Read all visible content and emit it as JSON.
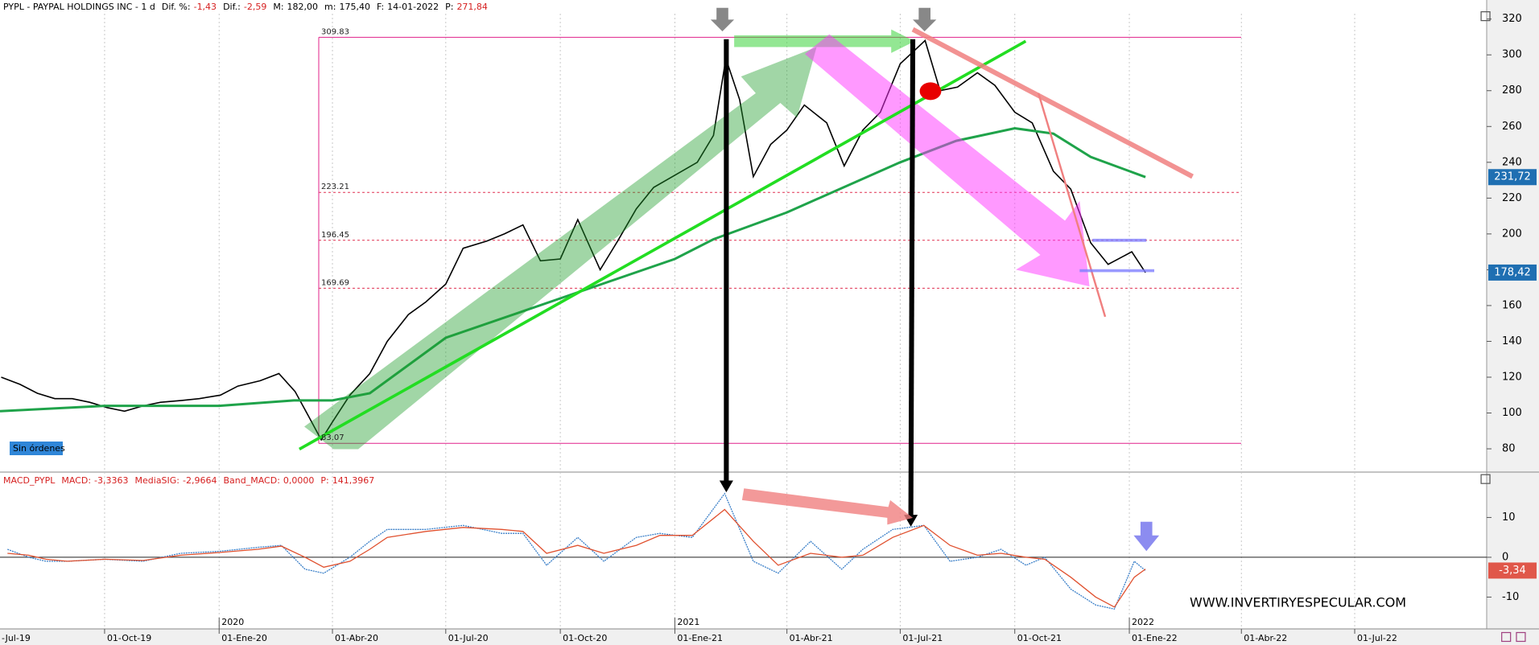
{
  "chart_data": [
    {
      "type": "line",
      "title": "PYPL - PAYPAL HOLDINGS INC -  1 d",
      "header_items": [
        {
          "label": "Dif. %:",
          "value": "-1,43",
          "color": "#d62020"
        },
        {
          "label": "Dif.:",
          "value": "-2,59",
          "color": "#d62020"
        },
        {
          "label": "M:",
          "value": "182,00",
          "color": "#000000"
        },
        {
          "label": "m:",
          "value": "175,40",
          "color": "#000000"
        },
        {
          "label": "F:",
          "value": "14-01-2022",
          "color": "#000000"
        },
        {
          "label": "P:",
          "value": "271,84",
          "color": "#d62020"
        }
      ],
      "xlim": [
        "2019-07-09",
        "2022-10-15"
      ],
      "xticks": [
        {
          "value": "2019-07-01",
          "label": "-Jul-19"
        },
        {
          "value": "2019-10-01",
          "label": "01-Oct-19"
        },
        {
          "value": "2020-01-01",
          "label": "01-Ene-20"
        },
        {
          "value": "2020-04-01",
          "label": "01-Abr-20"
        },
        {
          "value": "2020-07-01",
          "label": "01-Jul-20"
        },
        {
          "value": "2020-10-01",
          "label": "01-Oct-20"
        },
        {
          "value": "2021-01-01",
          "label": "01-Ene-21"
        },
        {
          "value": "2021-04-01",
          "label": "01-Abr-21"
        },
        {
          "value": "2021-07-01",
          "label": "01-Jul-21"
        },
        {
          "value": "2021-10-01",
          "label": "01-Oct-21"
        },
        {
          "value": "2022-01-01",
          "label": "01-Ene-22"
        },
        {
          "value": "2022-04-01",
          "label": "01-Abr-22"
        },
        {
          "value": "2022-07-01",
          "label": "01-Jul-22"
        }
      ],
      "year_ticks": [
        {
          "value": "2020-01-01",
          "label": "2020"
        },
        {
          "value": "2021-01-01",
          "label": "2021"
        },
        {
          "value": "2022-01-01",
          "label": "2022"
        }
      ],
      "ylim": [
        67,
        323
      ],
      "yticks": [
        80,
        100,
        120,
        140,
        160,
        180,
        200,
        220,
        240,
        260,
        280,
        300,
        320
      ],
      "series": [
        {
          "name": "PYPL",
          "color": "#000000",
          "x": [
            "2019-07-10",
            "2019-07-25",
            "2019-08-08",
            "2019-08-22",
            "2019-09-05",
            "2019-09-19",
            "2019-10-03",
            "2019-10-17",
            "2019-11-01",
            "2019-11-15",
            "2019-12-02",
            "2019-12-16",
            "2020-01-02",
            "2020-01-16",
            "2020-02-03",
            "2020-02-18",
            "2020-03-02",
            "2020-03-13",
            "2020-03-23",
            "2020-04-01",
            "2020-04-15",
            "2020-05-01",
            "2020-05-15",
            "2020-06-01",
            "2020-06-15",
            "2020-07-01",
            "2020-07-15",
            "2020-08-03",
            "2020-08-17",
            "2020-09-01",
            "2020-09-15",
            "2020-10-01",
            "2020-10-15",
            "2020-11-02",
            "2020-11-16",
            "2020-12-01",
            "2020-12-15",
            "2021-01-04",
            "2021-01-19",
            "2021-02-01",
            "2021-02-11",
            "2021-02-22",
            "2021-03-05",
            "2021-03-19",
            "2021-04-01",
            "2021-04-15",
            "2021-05-03",
            "2021-05-17",
            "2021-06-01",
            "2021-06-15",
            "2021-07-01",
            "2021-07-21",
            "2021-08-02",
            "2021-08-16",
            "2021-09-01",
            "2021-09-15",
            "2021-10-01",
            "2021-10-15",
            "2021-11-01",
            "2021-11-15",
            "2021-12-01",
            "2021-12-15",
            "2022-01-03",
            "2022-01-14"
          ],
          "values": [
            120,
            116,
            111,
            108,
            108,
            106,
            103,
            101,
            104,
            106,
            107,
            108,
            110,
            115,
            118,
            122,
            112,
            98,
            85,
            95,
            110,
            122,
            140,
            155,
            162,
            172,
            192,
            196,
            200,
            205,
            185,
            186,
            208,
            180,
            196,
            214,
            226,
            234,
            240,
            255,
            298,
            275,
            232,
            250,
            258,
            272,
            262,
            238,
            258,
            268,
            295,
            308,
            280,
            282,
            290,
            283,
            268,
            262,
            235,
            225,
            195,
            183,
            190,
            178.42
          ]
        },
        {
          "name": "SMA",
          "color": "#1fa34a",
          "x": [
            "2019-07-09",
            "2019-10-01",
            "2020-01-01",
            "2020-03-01",
            "2020-04-01",
            "2020-05-01",
            "2020-07-01",
            "2020-10-01",
            "2021-01-01",
            "2021-02-01",
            "2021-04-01",
            "2021-07-01",
            "2021-08-15",
            "2021-10-01",
            "2021-11-01",
            "2021-12-01",
            "2022-01-14"
          ],
          "values": [
            101,
            104,
            104,
            107,
            107,
            111,
            142,
            164,
            186,
            197,
            212,
            240,
            252,
            259,
            256,
            243,
            231.72
          ]
        }
      ],
      "levels": [
        309.83,
        223.21,
        196.45,
        169.69,
        83.07
      ],
      "level_styles": [
        "solid",
        "dashed",
        "dashed",
        "dashed",
        "solid"
      ],
      "price_tags": [
        {
          "value": 231.72,
          "label": "231,72",
          "color": "#1f6fb2"
        },
        {
          "value": 178.42,
          "label": "178,42",
          "color": "#1f6fb2"
        }
      ],
      "annotations": [
        "Sin órdenes"
      ]
    },
    {
      "type": "line",
      "title": "MACD_PYPL",
      "header_items": [
        {
          "label": "MACD:",
          "value": "-3,3363",
          "color": "#d62020"
        },
        {
          "label": "MediaSIG:",
          "value": "-2,9664",
          "color": "#d62020"
        },
        {
          "label": "Band_MACD:",
          "value": "0,0000",
          "color": "#d62020"
        },
        {
          "label": "P:",
          "value": "141,3967",
          "color": "#d62020"
        }
      ],
      "ylim": [
        -18,
        21
      ],
      "yticks": [
        -10,
        0,
        10
      ],
      "series": [
        {
          "name": "MACD",
          "color": "#3a7fc8",
          "x": [
            "2019-07-15",
            "2019-08-01",
            "2019-08-15",
            "2019-09-01",
            "2019-10-01",
            "2019-11-01",
            "2019-12-01",
            "2020-01-01",
            "2020-02-01",
            "2020-02-20",
            "2020-03-10",
            "2020-03-25",
            "2020-04-15",
            "2020-05-01",
            "2020-05-15",
            "2020-06-15",
            "2020-07-15",
            "2020-08-15",
            "2020-09-01",
            "2020-09-20",
            "2020-10-15",
            "2020-11-05",
            "2020-12-01",
            "2020-12-20",
            "2021-01-15",
            "2021-02-10",
            "2021-03-05",
            "2021-03-25",
            "2021-04-20",
            "2021-05-15",
            "2021-06-01",
            "2021-06-25",
            "2021-07-20",
            "2021-08-10",
            "2021-09-01",
            "2021-09-20",
            "2021-10-10",
            "2021-10-25",
            "2021-11-15",
            "2021-12-05",
            "2021-12-20",
            "2022-01-05",
            "2022-01-14"
          ],
          "values": [
            2,
            0,
            -1,
            -1,
            -0.5,
            -1,
            1,
            1.5,
            2.5,
            3,
            -3,
            -4,
            0,
            4,
            7,
            7,
            8,
            6,
            6,
            -2,
            5,
            -1,
            5,
            6,
            5,
            16,
            -1,
            -4,
            4,
            -3,
            2,
            7,
            8,
            -1,
            0,
            2,
            -2,
            0,
            -8,
            -12,
            -13,
            -1,
            -3.34
          ]
        },
        {
          "name": "MediaSIG",
          "color": "#e0502e",
          "x": [
            "2019-07-15",
            "2019-08-01",
            "2019-08-15",
            "2019-09-01",
            "2019-10-01",
            "2019-11-01",
            "2019-12-01",
            "2020-01-01",
            "2020-02-01",
            "2020-02-20",
            "2020-03-10",
            "2020-03-25",
            "2020-04-15",
            "2020-05-01",
            "2020-05-15",
            "2020-06-15",
            "2020-07-15",
            "2020-08-15",
            "2020-09-01",
            "2020-09-20",
            "2020-10-15",
            "2020-11-05",
            "2020-12-01",
            "2020-12-20",
            "2021-01-15",
            "2021-02-10",
            "2021-03-05",
            "2021-03-25",
            "2021-04-20",
            "2021-05-15",
            "2021-06-01",
            "2021-06-25",
            "2021-07-20",
            "2021-08-10",
            "2021-09-01",
            "2021-09-20",
            "2021-10-10",
            "2021-10-25",
            "2021-11-15",
            "2021-12-05",
            "2021-12-20",
            "2022-01-05",
            "2022-01-14"
          ],
          "values": [
            1,
            0.5,
            -0.5,
            -1,
            -0.5,
            -0.8,
            0.5,
            1.2,
            2,
            2.8,
            0,
            -2.5,
            -1,
            2,
            5,
            6.5,
            7.5,
            7,
            6.5,
            1,
            3,
            1,
            3,
            5.5,
            5.5,
            12,
            4,
            -2,
            1,
            0,
            0.5,
            5,
            8,
            3,
            0.5,
            1,
            0,
            -0.5,
            -5,
            -10,
            -12.5,
            -5,
            -2.97
          ]
        }
      ],
      "price_tags": [
        {
          "value": -3.34,
          "label": "-3,34",
          "color": "#e0574a"
        }
      ],
      "annotations": [
        "WWW.INVERTIRYESPECULAR.COM"
      ]
    }
  ]
}
